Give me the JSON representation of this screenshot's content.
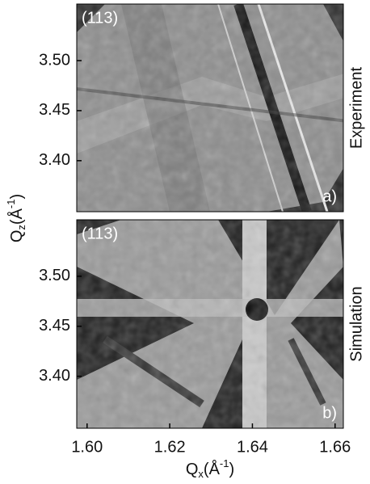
{
  "chart_data": [
    {
      "type": "map",
      "annotation": "(113)",
      "side_label": "Experiment",
      "panel_label": "a)",
      "xlim": [
        1.5975,
        1.662
      ],
      "ylim": [
        3.349,
        3.5565
      ],
      "yticks": [
        {
          "value": 3.4,
          "label": "3.40"
        },
        {
          "value": 3.45,
          "label": "3.45"
        },
        {
          "value": 3.5,
          "label": "3.50"
        }
      ]
    },
    {
      "type": "map",
      "annotation": "(113)",
      "side_label": "Simulation",
      "panel_label": "b)",
      "xlim": [
        1.5975,
        1.662
      ],
      "ylim": [
        3.348,
        3.5565
      ],
      "yticks": [
        {
          "value": 3.4,
          "label": "3.40"
        },
        {
          "value": 3.45,
          "label": "3.45"
        },
        {
          "value": 3.5,
          "label": "3.50"
        }
      ],
      "xticks": [
        {
          "value": 1.6,
          "label": "1.60"
        },
        {
          "value": 1.62,
          "label": "1.62"
        },
        {
          "value": 1.64,
          "label": "1.64"
        },
        {
          "value": 1.66,
          "label": "1.66"
        }
      ]
    }
  ],
  "ylabel": {
    "symbol": "Q",
    "sub": "z",
    "unit": "(Å",
    "sup": "-1",
    "close": ")"
  },
  "xlabel": {
    "symbol": "Q",
    "sub": "x",
    "unit": "(Å",
    "sup": "-1",
    "close": ")"
  }
}
